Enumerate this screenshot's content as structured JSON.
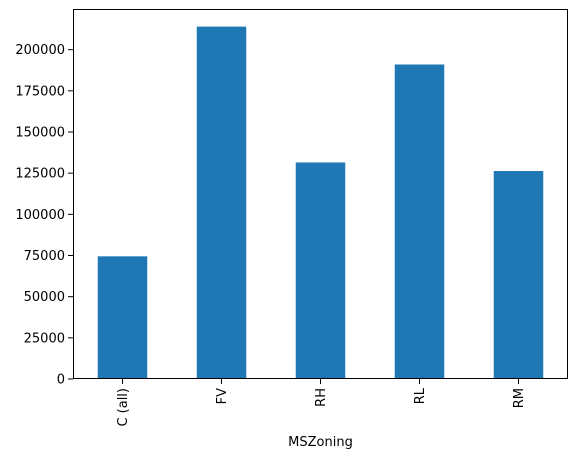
{
  "chart_data": {
    "type": "bar",
    "title": "",
    "xlabel": "MSZoning",
    "ylabel": "",
    "categories": [
      "C (all)",
      "FV",
      "RH",
      "RL",
      "RM"
    ],
    "values": [
      74500,
      214000,
      131500,
      191000,
      126300
    ],
    "ylim": [
      0,
      224700
    ],
    "yticks": [
      0,
      25000,
      50000,
      75000,
      100000,
      125000,
      150000,
      175000,
      200000
    ],
    "ytick_labels": [
      "0",
      "25000",
      "50000",
      "75000",
      "100000",
      "125000",
      "150000",
      "175000",
      "200000"
    ],
    "x_tick_rotation": "vertical",
    "grid": false,
    "legend": "none",
    "bar_color": "#1f77b4"
  }
}
